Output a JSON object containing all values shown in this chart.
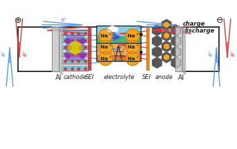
{
  "bg_color": "#ffffff",
  "circuit_color": "#222222",
  "arrow_blue": "#5599ee",
  "arrow_red": "#ee3333",
  "na_color": "#f5a623",
  "na_border": "#cc7700",
  "cathode_label": "cathode",
  "SEI_label": "SEI",
  "electrolyte_label": "electrolyte",
  "anode_label": "anode",
  "Al_label": "Al",
  "charge_label": "charge",
  "discharge_label": "discharge",
  "eminus": "e⁻"
}
